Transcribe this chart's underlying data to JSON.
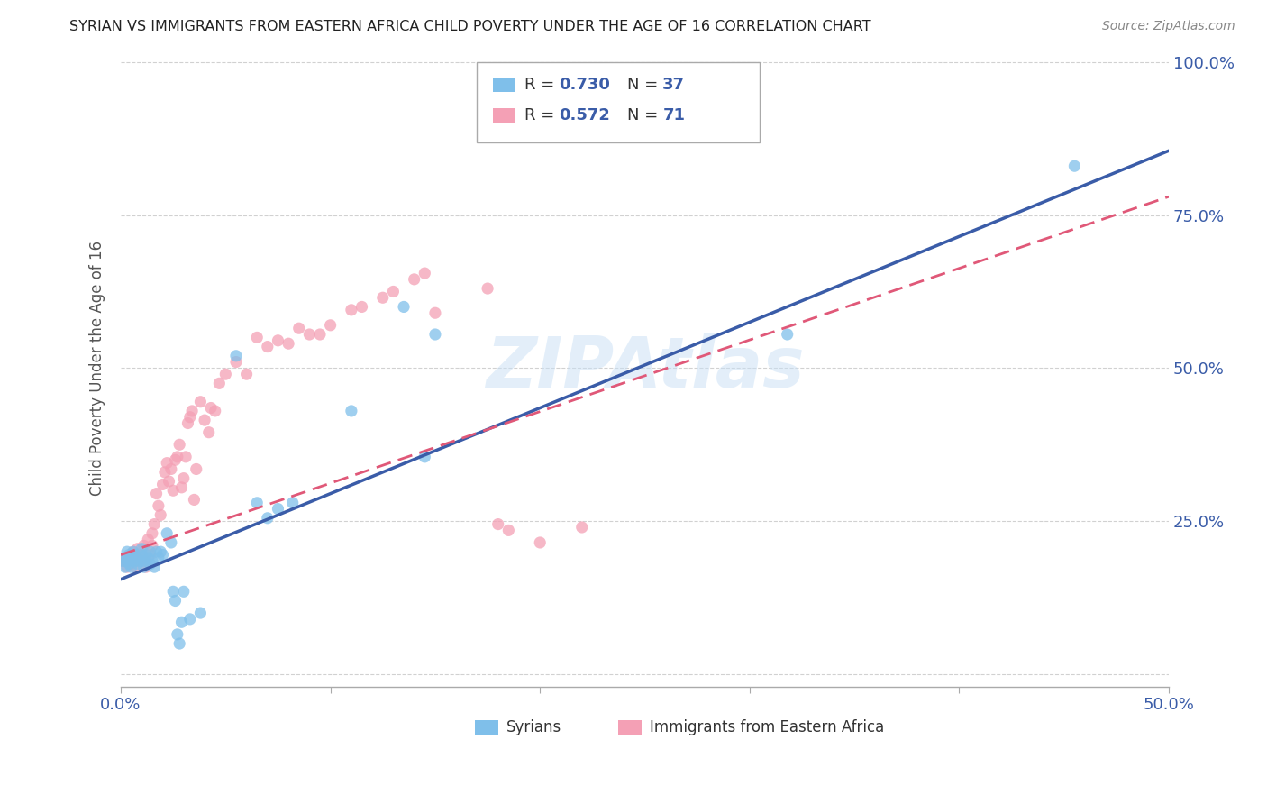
{
  "title": "SYRIAN VS IMMIGRANTS FROM EASTERN AFRICA CHILD POVERTY UNDER THE AGE OF 16 CORRELATION CHART",
  "source": "Source: ZipAtlas.com",
  "ylabel": "Child Poverty Under the Age of 16",
  "xlim": [
    0.0,
    0.5
  ],
  "ylim": [
    -0.02,
    1.02
  ],
  "syrian_color": "#7fbfea",
  "eastern_africa_color": "#f4a0b5",
  "syrian_line_color": "#3a5ca8",
  "eastern_africa_line_color": "#e05878",
  "watermark": "ZIPAtlas",
  "syrian_points": [
    [
      0.001,
      0.185
    ],
    [
      0.002,
      0.19
    ],
    [
      0.002,
      0.175
    ],
    [
      0.003,
      0.185
    ],
    [
      0.003,
      0.2
    ],
    [
      0.004,
      0.18
    ],
    [
      0.004,
      0.195
    ],
    [
      0.005,
      0.185
    ],
    [
      0.005,
      0.175
    ],
    [
      0.006,
      0.19
    ],
    [
      0.006,
      0.2
    ],
    [
      0.007,
      0.185
    ],
    [
      0.007,
      0.195
    ],
    [
      0.008,
      0.18
    ],
    [
      0.008,
      0.19
    ],
    [
      0.009,
      0.185
    ],
    [
      0.01,
      0.195
    ],
    [
      0.01,
      0.205
    ],
    [
      0.011,
      0.185
    ],
    [
      0.011,
      0.175
    ],
    [
      0.012,
      0.195
    ],
    [
      0.013,
      0.19
    ],
    [
      0.014,
      0.18
    ],
    [
      0.014,
      0.2
    ],
    [
      0.015,
      0.185
    ],
    [
      0.016,
      0.175
    ],
    [
      0.017,
      0.2
    ],
    [
      0.018,
      0.19
    ],
    [
      0.019,
      0.2
    ],
    [
      0.02,
      0.195
    ],
    [
      0.022,
      0.23
    ],
    [
      0.024,
      0.215
    ],
    [
      0.025,
      0.135
    ],
    [
      0.026,
      0.12
    ],
    [
      0.027,
      0.065
    ],
    [
      0.028,
      0.05
    ],
    [
      0.029,
      0.085
    ],
    [
      0.03,
      0.135
    ],
    [
      0.033,
      0.09
    ],
    [
      0.038,
      0.1
    ],
    [
      0.055,
      0.52
    ],
    [
      0.065,
      0.28
    ],
    [
      0.07,
      0.255
    ],
    [
      0.075,
      0.27
    ],
    [
      0.082,
      0.28
    ],
    [
      0.11,
      0.43
    ],
    [
      0.135,
      0.6
    ],
    [
      0.145,
      0.355
    ],
    [
      0.15,
      0.555
    ],
    [
      0.318,
      0.555
    ],
    [
      0.455,
      0.83
    ]
  ],
  "ea_points": [
    [
      0.001,
      0.185
    ],
    [
      0.002,
      0.185
    ],
    [
      0.003,
      0.175
    ],
    [
      0.004,
      0.19
    ],
    [
      0.005,
      0.18
    ],
    [
      0.006,
      0.195
    ],
    [
      0.006,
      0.2
    ],
    [
      0.007,
      0.185
    ],
    [
      0.007,
      0.175
    ],
    [
      0.008,
      0.19
    ],
    [
      0.008,
      0.205
    ],
    [
      0.009,
      0.185
    ],
    [
      0.01,
      0.195
    ],
    [
      0.01,
      0.185
    ],
    [
      0.011,
      0.21
    ],
    [
      0.012,
      0.185
    ],
    [
      0.012,
      0.175
    ],
    [
      0.013,
      0.22
    ],
    [
      0.014,
      0.195
    ],
    [
      0.015,
      0.23
    ],
    [
      0.015,
      0.21
    ],
    [
      0.016,
      0.245
    ],
    [
      0.017,
      0.295
    ],
    [
      0.018,
      0.275
    ],
    [
      0.019,
      0.26
    ],
    [
      0.02,
      0.31
    ],
    [
      0.021,
      0.33
    ],
    [
      0.022,
      0.345
    ],
    [
      0.023,
      0.315
    ],
    [
      0.024,
      0.335
    ],
    [
      0.025,
      0.3
    ],
    [
      0.026,
      0.35
    ],
    [
      0.027,
      0.355
    ],
    [
      0.028,
      0.375
    ],
    [
      0.029,
      0.305
    ],
    [
      0.03,
      0.32
    ],
    [
      0.031,
      0.355
    ],
    [
      0.032,
      0.41
    ],
    [
      0.033,
      0.42
    ],
    [
      0.034,
      0.43
    ],
    [
      0.035,
      0.285
    ],
    [
      0.036,
      0.335
    ],
    [
      0.038,
      0.445
    ],
    [
      0.04,
      0.415
    ],
    [
      0.042,
      0.395
    ],
    [
      0.043,
      0.435
    ],
    [
      0.045,
      0.43
    ],
    [
      0.047,
      0.475
    ],
    [
      0.05,
      0.49
    ],
    [
      0.055,
      0.51
    ],
    [
      0.06,
      0.49
    ],
    [
      0.065,
      0.55
    ],
    [
      0.07,
      0.535
    ],
    [
      0.075,
      0.545
    ],
    [
      0.08,
      0.54
    ],
    [
      0.085,
      0.565
    ],
    [
      0.09,
      0.555
    ],
    [
      0.095,
      0.555
    ],
    [
      0.1,
      0.57
    ],
    [
      0.11,
      0.595
    ],
    [
      0.115,
      0.6
    ],
    [
      0.125,
      0.615
    ],
    [
      0.13,
      0.625
    ],
    [
      0.14,
      0.645
    ],
    [
      0.145,
      0.655
    ],
    [
      0.15,
      0.59
    ],
    [
      0.175,
      0.63
    ],
    [
      0.18,
      0.245
    ],
    [
      0.185,
      0.235
    ],
    [
      0.2,
      0.215
    ],
    [
      0.22,
      0.24
    ]
  ],
  "syrian_line_x0": 0.0,
  "syrian_line_y0": 0.155,
  "syrian_line_x1": 0.5,
  "syrian_line_y1": 0.855,
  "ea_line_x0": 0.0,
  "ea_line_y0": 0.195,
  "ea_line_x1": 0.5,
  "ea_line_y1": 0.78
}
